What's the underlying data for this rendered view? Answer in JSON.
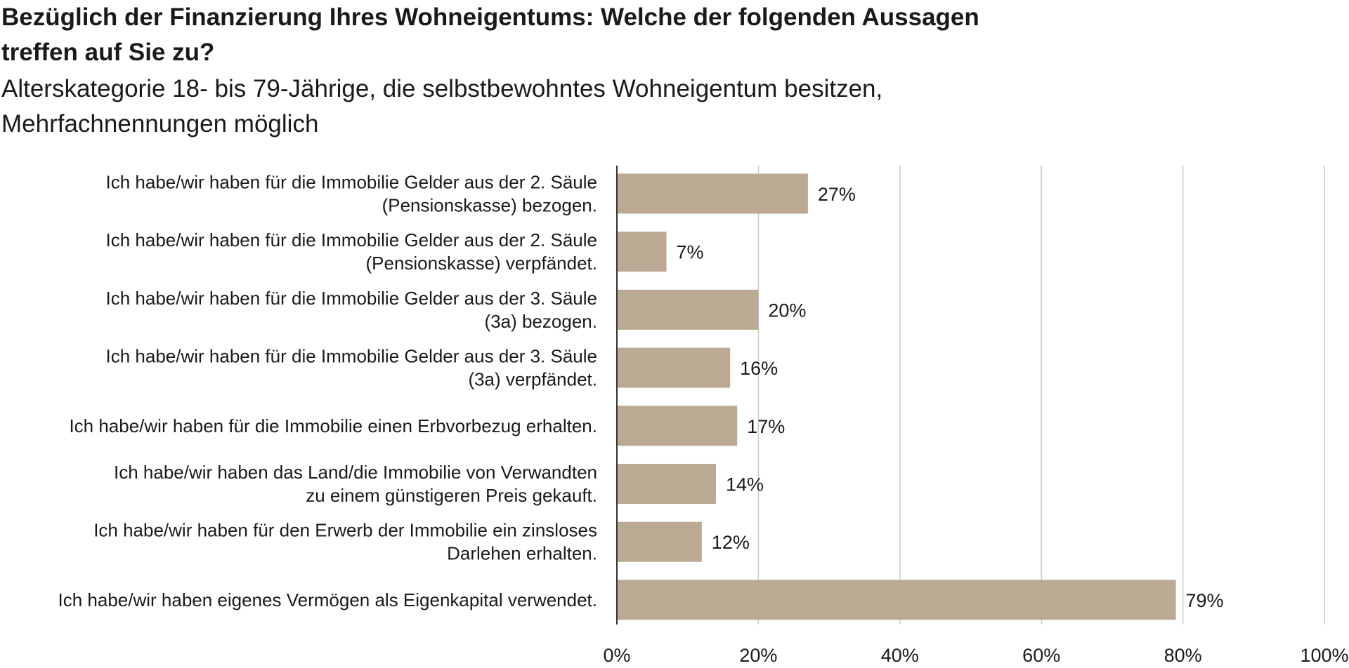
{
  "chart_data": {
    "type": "bar",
    "orientation": "horizontal",
    "title": "Bezüglich der Finanzierung Ihres Wohneigentums: Welche der folgenden Aussagen treffen auf Sie zu?",
    "subtitle": "Alterskategorie 18- bis 79-Jährige, die selbstbewohntes Wohneigentum besitzen, Mehrfachnennungen möglich",
    "categories": [
      [
        "Ich habe/wir haben für die Immobilie Gelder aus der 2. Säule",
        "(Pensionskasse) bezogen."
      ],
      [
        "Ich habe/wir haben für die Immobilie Gelder aus der 2. Säule",
        "(Pensionskasse) verpfändet."
      ],
      [
        "Ich habe/wir haben für die Immobilie Gelder aus der 3. Säule",
        "(3a) bezogen."
      ],
      [
        "Ich habe/wir haben für die Immobilie Gelder aus der 3. Säule",
        "(3a) verpfändet."
      ],
      [
        "Ich habe/wir haben für die Immobilie einen Erbvorbezug erhalten."
      ],
      [
        "Ich habe/wir haben das Land/die Immobilie von Verwandten",
        "zu einem günstigeren Preis gekauft."
      ],
      [
        "Ich habe/wir haben für den Erwerb der Immobilie ein zinsloses",
        "Darlehen erhalten."
      ],
      [
        "Ich habe/wir haben eigenes Vermögen als Eigenkapital verwendet."
      ]
    ],
    "values": [
      27,
      7,
      20,
      16,
      17,
      14,
      12,
      79
    ],
    "value_labels": [
      "27%",
      "7%",
      "20%",
      "16%",
      "17%",
      "14%",
      "12%",
      "79%"
    ],
    "xlim": [
      0,
      100
    ],
    "xticks": [
      0,
      20,
      40,
      60,
      80,
      100
    ],
    "xtick_labels": [
      "0%",
      "20%",
      "40%",
      "60%",
      "80%",
      "100%"
    ],
    "grid": true,
    "colors": {
      "bar": "#bba994",
      "grid": "#c8c8c8",
      "axis": "#333333",
      "text": "#1a1a1a"
    }
  }
}
